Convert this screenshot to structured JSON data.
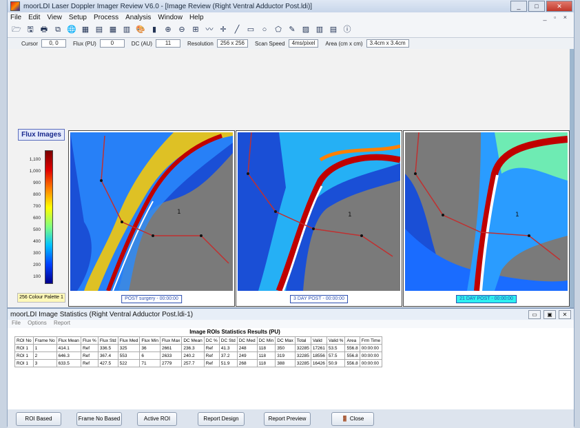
{
  "window": {
    "title": "moorLDI Laser Doppler Imager Review V6.0 - [Image Review (Right Ventral Adductor Post.ldi)]",
    "buttons": [
      "_",
      "□",
      "✕"
    ]
  },
  "menu": [
    "File",
    "Edit",
    "View",
    "Setup",
    "Process",
    "Analysis",
    "Window",
    "Help"
  ],
  "toolbar_icons": [
    "open-icon",
    "save-icon",
    "print-icon",
    "copy-icon",
    "globe-icon",
    "image-icon",
    "compare-icon",
    "grid-icon",
    "tile-icon",
    "palette-icon",
    "histogram-icon",
    "zoom-in-icon",
    "zoom-out-icon",
    "zoom-fit-icon",
    "profile-icon",
    "cross-icon",
    "line-icon",
    "rect-icon",
    "ellipse-icon",
    "polygon-icon",
    "freehand-icon",
    "stats-icon",
    "chart-icon",
    "report-icon",
    "info-icon"
  ],
  "status": {
    "cursor_label": "Cursor",
    "cursor_value": "0, 0",
    "flux_label": "Flux (PU)",
    "flux_value": "0",
    "dc_label": "DC (AU)",
    "dc_value": "11",
    "resolution_label": "Resolution",
    "resolution_value": "256 x 256",
    "scan_label": "Scan Speed",
    "scan_value": "4ms/pixel",
    "area_label": "Area (cm x cm)",
    "area_value": "3.4cm x 3.4cm"
  },
  "flux_images_label": "Flux Images",
  "palette": {
    "ticks": [
      "1,100",
      "1,000",
      "900",
      "800",
      "700",
      "600",
      "500",
      "400",
      "300",
      "200",
      "100"
    ],
    "name": "256 Colour Palette 1",
    "colors": [
      "#7a0000",
      "#e00000",
      "#ff8000",
      "#ffff00",
      "#80ff80",
      "#00c0ff",
      "#0040ff",
      "#00008c"
    ]
  },
  "images": [
    {
      "caption": "POST surgery - 00:00:00",
      "roi": "1"
    },
    {
      "caption": "3 DAY POST - 00:00:00",
      "roi": "1"
    },
    {
      "caption": "21 DAY POST - 00:00:00",
      "roi": "1"
    }
  ],
  "stats": {
    "title": "moorLDI Image Statistics (Right Ventral Adductor Post.ldi-1)",
    "menu": [
      "File",
      "Options",
      "Report"
    ],
    "table_title": "Image ROIs Statistics Results (PU)",
    "columns": [
      "ROI No",
      "Frame No",
      "Flux Mean",
      "Flux %",
      "Flux Std",
      "Flux Med",
      "Flux Min",
      "Flux Max",
      "DC Mean",
      "DC %",
      "DC Std",
      "DC Med",
      "DC Min",
      "DC Max",
      "Total",
      "Valid",
      "Valid %",
      "Area",
      "Frm Time"
    ],
    "rows": [
      [
        "ROI 1",
        "1",
        "414.1",
        "Ref",
        "336.5",
        "325",
        "36",
        "2661",
        "236.3",
        "Ref",
        "41.3",
        "248",
        "118",
        "350",
        "32285",
        "17261",
        "53.5",
        "556.8",
        "00:00:00"
      ],
      [
        "ROI 1",
        "2",
        "646.3",
        "Ref",
        "367.4",
        "553",
        "6",
        "2633",
        "240.2",
        "Ref",
        "37.2",
        "249",
        "118",
        "319",
        "32285",
        "18556",
        "57.5",
        "556.8",
        "00:00:00"
      ],
      [
        "ROI 1",
        "3",
        "633.5",
        "Ref",
        "427.5",
        "522",
        "71",
        "2779",
        "257.7",
        "Ref",
        "51.9",
        "268",
        "118",
        "388",
        "32285",
        "16426",
        "50.9",
        "556.8",
        "00:00:00"
      ]
    ],
    "buttons": [
      "ROI Based",
      "Frame No Based",
      "Active ROI",
      "Report Design",
      "Report Preview",
      "Close"
    ],
    "window_buttons": [
      "▭",
      "▣",
      "✕"
    ]
  }
}
